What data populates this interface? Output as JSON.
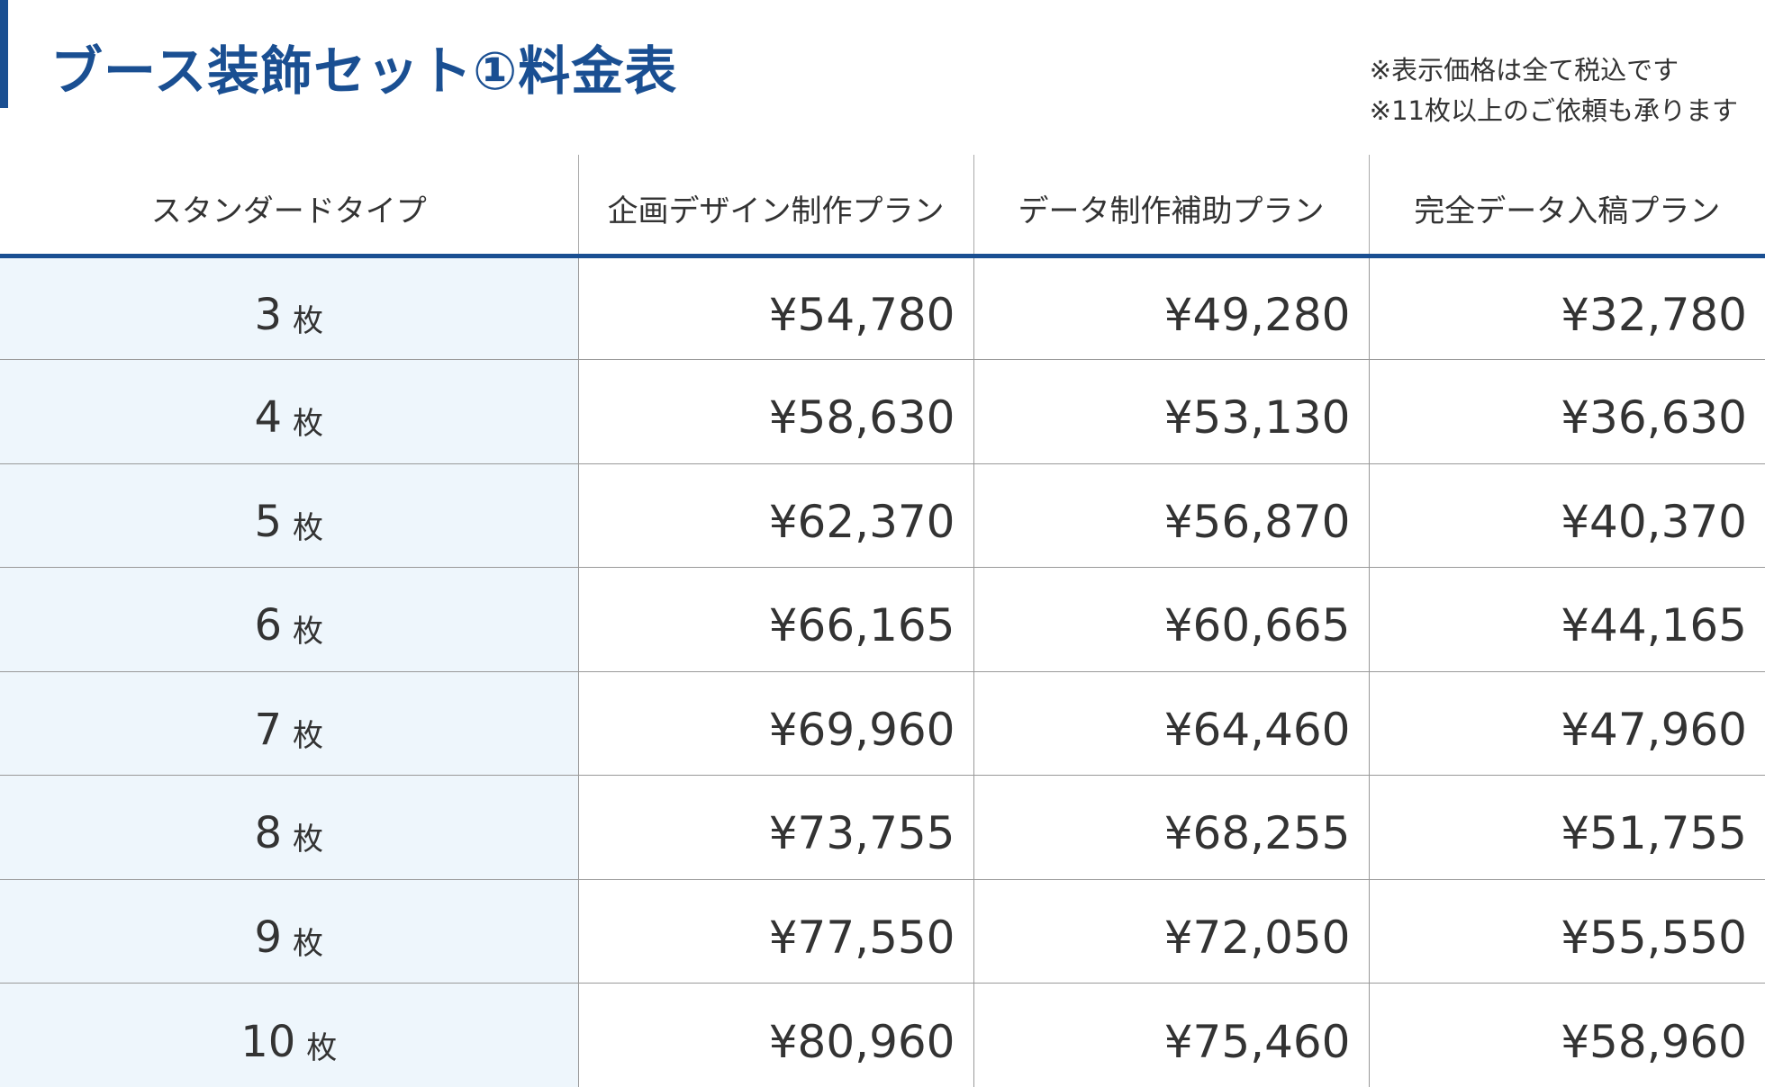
{
  "page": {
    "title": "ブース装飾セット①料金表",
    "notes": [
      "※表示価格は全て税込です",
      "※11枚以上のご依頼も承ります"
    ]
  },
  "colors": {
    "accent": "#1a4f92",
    "row_header_bg": "#eef6fc"
  },
  "table": {
    "headers": [
      "スタンダードタイプ",
      "企画デザイン制作プラン",
      "データ制作補助プラン",
      "完全データ入稿プラン"
    ],
    "unit": "枚",
    "rows": [
      {
        "qty": "3",
        "prices": [
          "¥54,780",
          "¥49,280",
          "¥32,780"
        ]
      },
      {
        "qty": "4",
        "prices": [
          "¥58,630",
          "¥53,130",
          "¥36,630"
        ]
      },
      {
        "qty": "5",
        "prices": [
          "¥62,370",
          "¥56,870",
          "¥40,370"
        ]
      },
      {
        "qty": "6",
        "prices": [
          "¥66,165",
          "¥60,665",
          "¥44,165"
        ]
      },
      {
        "qty": "7",
        "prices": [
          "¥69,960",
          "¥64,460",
          "¥47,960"
        ]
      },
      {
        "qty": "8",
        "prices": [
          "¥73,755",
          "¥68,255",
          "¥51,755"
        ]
      },
      {
        "qty": "9",
        "prices": [
          "¥77,550",
          "¥72,050",
          "¥55,550"
        ]
      },
      {
        "qty": "10",
        "prices": [
          "¥80,960",
          "¥75,460",
          "¥58,960"
        ]
      }
    ]
  }
}
